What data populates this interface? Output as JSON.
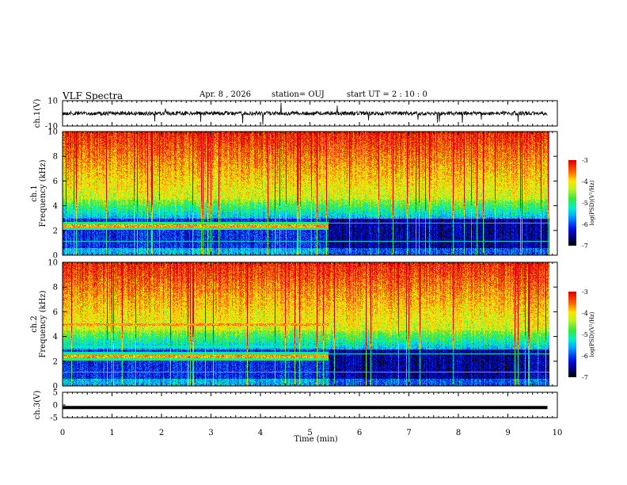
{
  "header": {
    "title": "VLF Spectra",
    "date": "Apr. 8 , 2026",
    "station": "station= OUJ",
    "start": "start UT = 2 : 10 : 0"
  },
  "chart_data": [
    {
      "type": "line",
      "ylabel": "ch.1(V)",
      "ylim": [
        -10,
        10
      ],
      "yticks": [
        "10",
        "-10"
      ],
      "description_of_series": "noisy waveform around 0 V with sparse negative spikes",
      "x_range_min": [
        0,
        10
      ],
      "baseline_value": 0
    },
    {
      "type": "heatmap",
      "ylabel": "ch.1\nFrequency (kHz)",
      "ylim": [
        0,
        10
      ],
      "yticks": [
        "0",
        "2",
        "4",
        "6",
        "8",
        "10"
      ],
      "colorbar": {
        "label": "log(PSD)(V²/Hz)",
        "range": [
          -7,
          -3
        ],
        "ticks": [
          "-3",
          "-4",
          "-5",
          "-6",
          "-7"
        ]
      },
      "regime_change_min": 5.45,
      "bands_before_khz": [
        2.4
      ],
      "bands_after_khz": []
    },
    {
      "type": "heatmap",
      "ylabel": "ch.2\nFrequency (kHz)",
      "ylim": [
        0,
        10
      ],
      "yticks": [
        "0",
        "2",
        "4",
        "6",
        "8",
        "10"
      ],
      "colorbar": {
        "label": "log(PSD)(V²/Hz)",
        "range": [
          -7,
          -3
        ],
        "ticks": [
          "-3",
          "-4",
          "-5",
          "-6",
          "-7"
        ]
      },
      "regime_change_min": 5.45,
      "bands_before_khz": [
        2.4,
        5.0
      ],
      "bands_after_khz": []
    },
    {
      "type": "line",
      "ylabel": "ch.3(V)",
      "ylim": [
        -5,
        5
      ],
      "yticks": [
        "5",
        "0",
        "-5"
      ],
      "values": [
        -1,
        -1
      ],
      "x": [
        0,
        9.8
      ]
    }
  ],
  "xaxis": {
    "label": "Time (min)",
    "ticks": [
      "0",
      "1",
      "2",
      "3",
      "4",
      "5",
      "6",
      "7",
      "8",
      "9",
      "10"
    ],
    "range": [
      0,
      10
    ]
  },
  "colors": {
    "frame": "#000000",
    "background": "#ffffff"
  }
}
